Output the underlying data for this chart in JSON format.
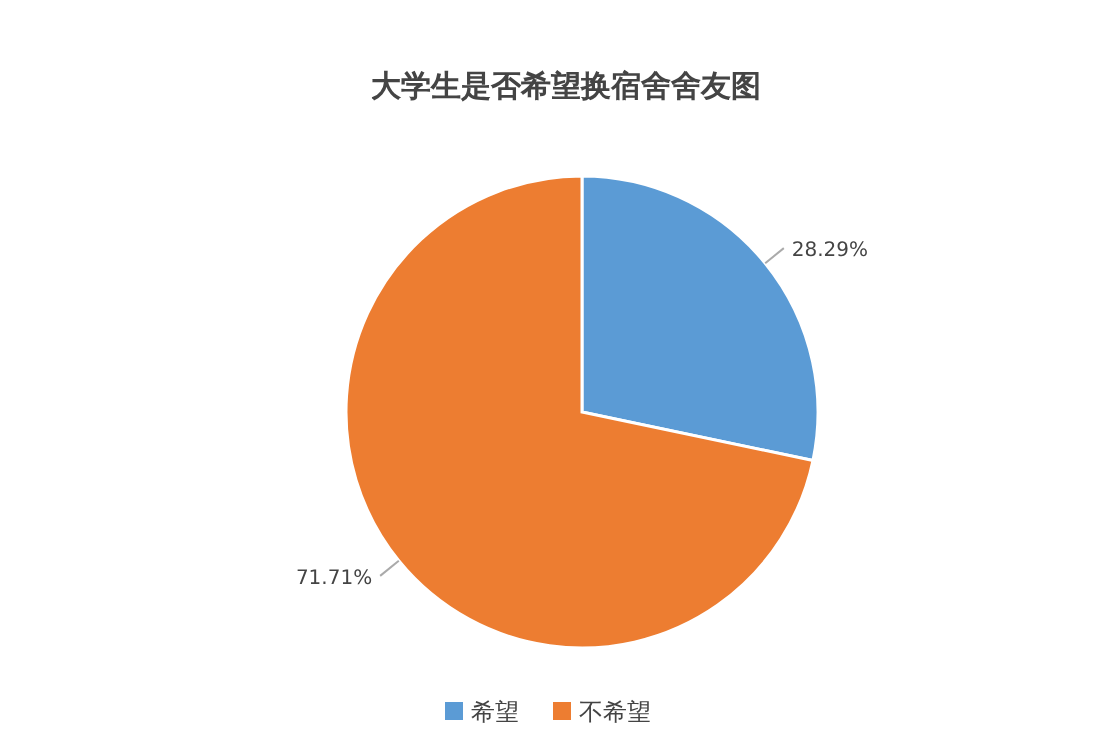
{
  "chart_data": {
    "type": "pie",
    "title": "大学生是否希望换宿舍舍友图",
    "categories": [
      "希望",
      "不希望"
    ],
    "values": [
      28.29,
      71.71
    ],
    "colors": [
      "#5b9bd5",
      "#ed7d31"
    ],
    "value_labels": [
      "28.29%",
      "71.71%"
    ],
    "legend": "bottom"
  }
}
